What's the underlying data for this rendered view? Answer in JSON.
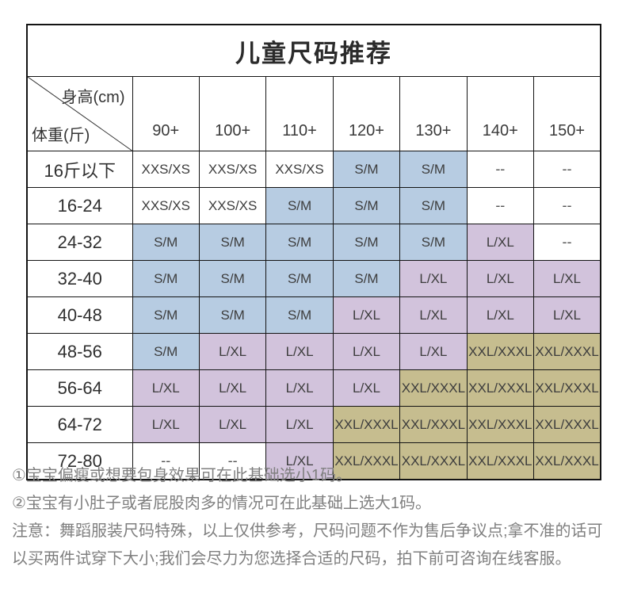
{
  "title": "儿童尺码推荐",
  "table": {
    "corner": {
      "top_right": "身高(cm)",
      "bottom_left": "体重(斤)"
    },
    "columns": [
      "90+",
      "100+",
      "110+",
      "120+",
      "130+",
      "140+",
      "150+"
    ],
    "rows": [
      {
        "label": "16斤以下",
        "cells": [
          {
            "v": "XXS/XS",
            "c": "none"
          },
          {
            "v": "XXS/XS",
            "c": "none"
          },
          {
            "v": "XXS/XS",
            "c": "none"
          },
          {
            "v": "S/M",
            "c": "blue"
          },
          {
            "v": "S/M",
            "c": "blue"
          },
          {
            "v": "--",
            "c": "none"
          },
          {
            "v": "--",
            "c": "none"
          }
        ]
      },
      {
        "label": "16-24",
        "cells": [
          {
            "v": "XXS/XS",
            "c": "none"
          },
          {
            "v": "XXS/XS",
            "c": "none"
          },
          {
            "v": "S/M",
            "c": "blue"
          },
          {
            "v": "S/M",
            "c": "blue"
          },
          {
            "v": "S/M",
            "c": "blue"
          },
          {
            "v": "--",
            "c": "none"
          },
          {
            "v": "--",
            "c": "none"
          }
        ]
      },
      {
        "label": "24-32",
        "cells": [
          {
            "v": "S/M",
            "c": "blue"
          },
          {
            "v": "S/M",
            "c": "blue"
          },
          {
            "v": "S/M",
            "c": "blue"
          },
          {
            "v": "S/M",
            "c": "blue"
          },
          {
            "v": "S/M",
            "c": "blue"
          },
          {
            "v": "L/XL",
            "c": "purple"
          },
          {
            "v": "--",
            "c": "none"
          }
        ]
      },
      {
        "label": "32-40",
        "cells": [
          {
            "v": "S/M",
            "c": "blue"
          },
          {
            "v": "S/M",
            "c": "blue"
          },
          {
            "v": "S/M",
            "c": "blue"
          },
          {
            "v": "S/M",
            "c": "blue"
          },
          {
            "v": "L/XL",
            "c": "purple"
          },
          {
            "v": "L/XL",
            "c": "purple"
          },
          {
            "v": "L/XL",
            "c": "purple"
          }
        ]
      },
      {
        "label": "40-48",
        "cells": [
          {
            "v": "S/M",
            "c": "blue"
          },
          {
            "v": "S/M",
            "c": "blue"
          },
          {
            "v": "S/M",
            "c": "blue"
          },
          {
            "v": "L/XL",
            "c": "purple"
          },
          {
            "v": "L/XL",
            "c": "purple"
          },
          {
            "v": "L/XL",
            "c": "purple"
          },
          {
            "v": "L/XL",
            "c": "purple"
          }
        ]
      },
      {
        "label": "48-56",
        "cells": [
          {
            "v": "S/M",
            "c": "blue"
          },
          {
            "v": "L/XL",
            "c": "purple"
          },
          {
            "v": "L/XL",
            "c": "purple"
          },
          {
            "v": "L/XL",
            "c": "purple"
          },
          {
            "v": "L/XL",
            "c": "purple"
          },
          {
            "v": "XXL/XXXL",
            "c": "khaki"
          },
          {
            "v": "XXL/XXXL",
            "c": "khaki"
          }
        ]
      },
      {
        "label": "56-64",
        "cells": [
          {
            "v": "L/XL",
            "c": "purple"
          },
          {
            "v": "L/XL",
            "c": "purple"
          },
          {
            "v": "L/XL",
            "c": "purple"
          },
          {
            "v": "L/XL",
            "c": "purple"
          },
          {
            "v": "XXL/XXXL",
            "c": "khaki"
          },
          {
            "v": "XXL/XXXL",
            "c": "khaki"
          },
          {
            "v": "XXL/XXXL",
            "c": "khaki"
          }
        ]
      },
      {
        "label": "64-72",
        "cells": [
          {
            "v": "L/XL",
            "c": "purple"
          },
          {
            "v": "L/XL",
            "c": "purple"
          },
          {
            "v": "L/XL",
            "c": "purple"
          },
          {
            "v": "XXL/XXXL",
            "c": "khaki"
          },
          {
            "v": "XXL/XXXL",
            "c": "khaki"
          },
          {
            "v": "XXL/XXXL",
            "c": "khaki"
          },
          {
            "v": "XXL/XXXL",
            "c": "khaki"
          }
        ]
      },
      {
        "label": "72-80",
        "cells": [
          {
            "v": "--",
            "c": "none"
          },
          {
            "v": "--",
            "c": "none"
          },
          {
            "v": "L/XL",
            "c": "purple"
          },
          {
            "v": "XXL/XXXL",
            "c": "khaki"
          },
          {
            "v": "XXL/XXXL",
            "c": "khaki"
          },
          {
            "v": "XXL/XXXL",
            "c": "khaki"
          },
          {
            "v": "XXL/XXXL",
            "c": "khaki"
          }
        ]
      }
    ]
  },
  "colors": {
    "blue": "#b7cce2",
    "purple": "#d2c3dc",
    "khaki": "#c6bd8f",
    "none": "#ffffff"
  },
  "notes": [
    "①宝宝偏瘦或想要包身效果可在此基础选小1码。",
    "②宝宝有小肚子或者屁股肉多的情况可在此基础上选大1码。"
  ],
  "notice": "注意：舞蹈服装尺码特殊，以上仅供参考，尺码问题不作为售后争议点;拿不准的话可以买两件试穿下大小;我们会尽力为您选择合适的尺码，拍下前可咨询在线客服。"
}
